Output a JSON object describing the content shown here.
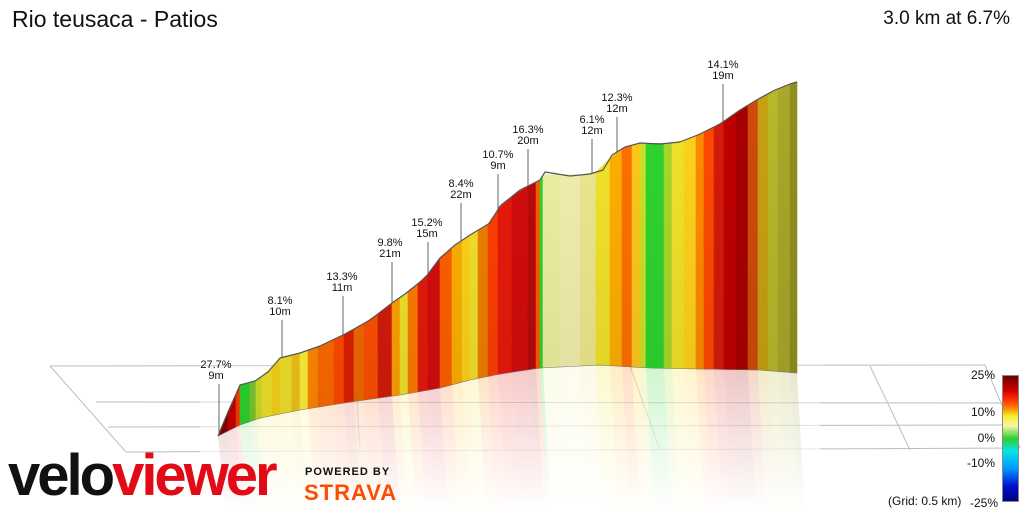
{
  "header": {
    "title": "Rio teusaca - Patios",
    "stats": "3.0 km at 6.7%"
  },
  "grid_note": "(Grid: 0.5 km)",
  "legend": {
    "ticks": [
      "25%",
      "10%",
      "0%",
      "-10%",
      "-25%"
    ],
    "tick_values": [
      25,
      10,
      0,
      -10,
      -25
    ]
  },
  "branding": {
    "logo_part1": "velo",
    "logo_part2": "viewer",
    "powered": "POWERED BY",
    "strava": "STRAVA"
  },
  "chart_data": {
    "type": "area",
    "title": "Rio teusaca - Patios",
    "distance_km": 3.0,
    "avg_gradient_percent": 6.7,
    "grid_spacing_km": 0.5,
    "gradient_scale_percent": [
      -25,
      25
    ],
    "annotations": [
      {
        "gradient": "27.7%",
        "length": "9m"
      },
      {
        "gradient": "8.1%",
        "length": "10m"
      },
      {
        "gradient": "13.3%",
        "length": "11m"
      },
      {
        "gradient": "9.8%",
        "length": "21m"
      },
      {
        "gradient": "15.2%",
        "length": "15m"
      },
      {
        "gradient": "8.4%",
        "length": "22m"
      },
      {
        "gradient": "10.7%",
        "length": "9m"
      },
      {
        "gradient": "16.3%",
        "length": "20m"
      },
      {
        "gradient": "6.1%",
        "length": "12m"
      },
      {
        "gradient": "12.3%",
        "length": "12m"
      },
      {
        "gradient": "14.1%",
        "length": "19m"
      }
    ],
    "gradient_colors": {
      "steep": "#d40d0d",
      "hard": "#ff6a00",
      "moderate": "#f2e32a",
      "easy": "#eef0a0",
      "flat": "#2ed52e"
    }
  }
}
